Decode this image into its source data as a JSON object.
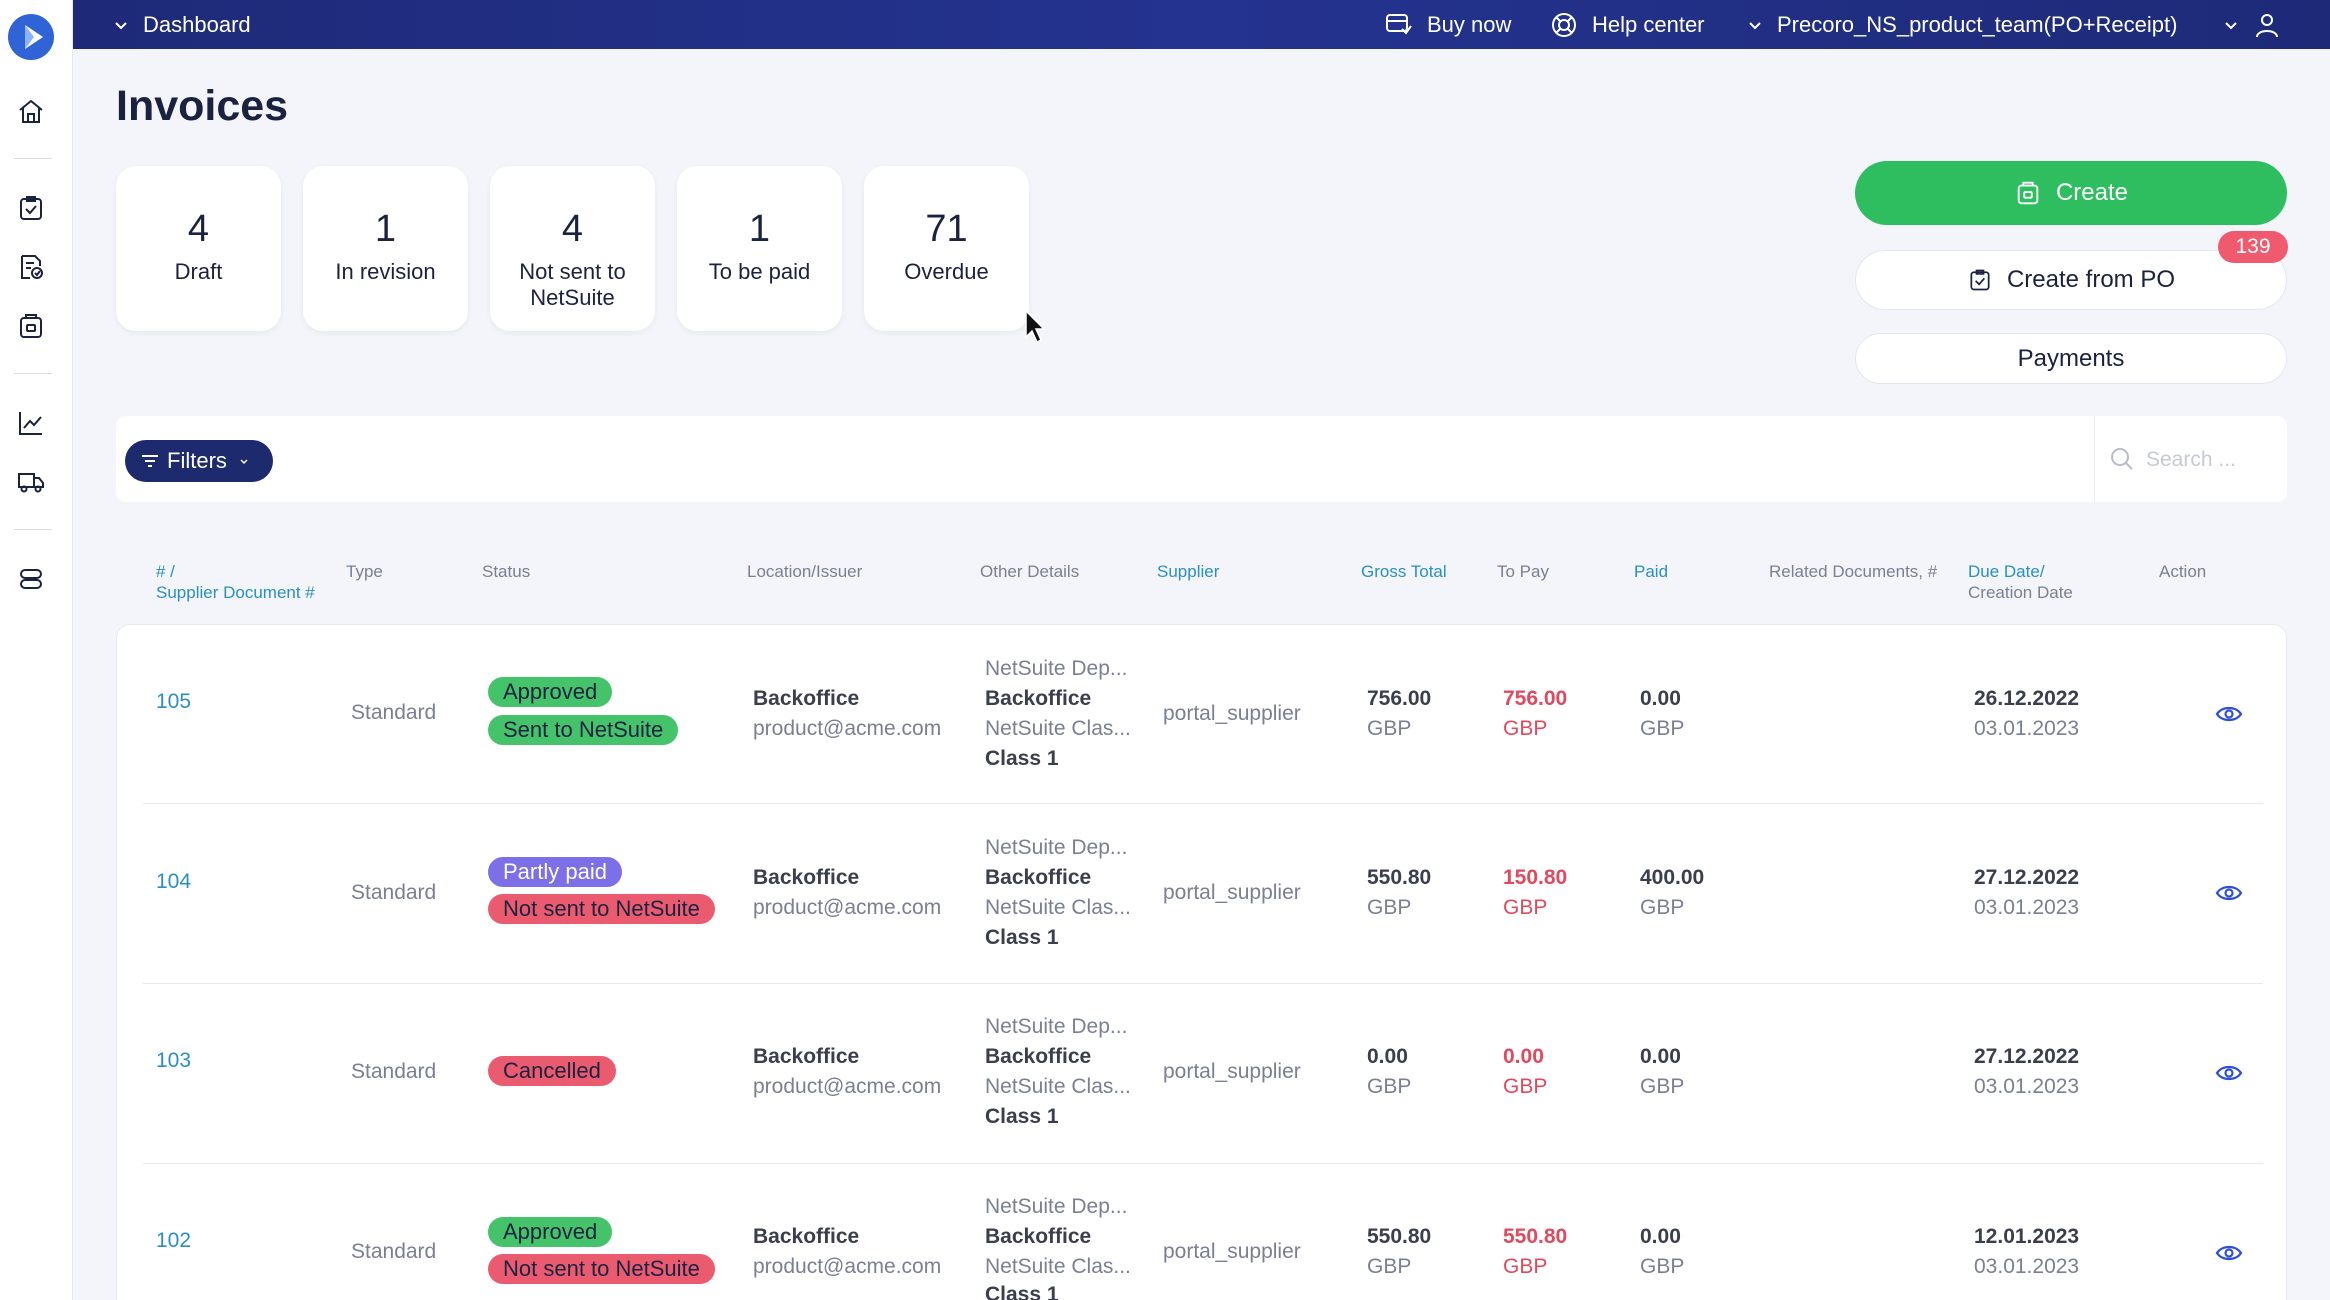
{
  "topbar": {
    "dashboard": "Dashboard",
    "buy_now": "Buy now",
    "help_center": "Help center",
    "company": "Precoro_NS_product_team(PO+Receipt)"
  },
  "page": {
    "title": "Invoices"
  },
  "stats": [
    {
      "value": "4",
      "label": "Draft"
    },
    {
      "value": "1",
      "label": "In revision"
    },
    {
      "value": "4",
      "label": "Not sent to NetSuite"
    },
    {
      "value": "1",
      "label": "To be paid"
    },
    {
      "value": "71",
      "label": "Overdue"
    }
  ],
  "actions": {
    "create": "Create",
    "create_from_po": "Create from PO",
    "create_from_po_badge": "139",
    "payments": "Payments"
  },
  "filters": {
    "label": "Filters",
    "search_placeholder": "Search ..."
  },
  "columns": {
    "number": "# /",
    "number_sub": "Supplier Document #",
    "type": "Type",
    "status": "Status",
    "location": "Location/Issuer",
    "other": "Other Details",
    "supplier": "Supplier",
    "gross": "Gross Total",
    "topay": "To Pay",
    "paid": "Paid",
    "related": "Related Documents, #",
    "due": "Due Date/",
    "due_sub": "Creation Date",
    "action": "Action"
  },
  "rows": [
    {
      "number": "105",
      "type": "Standard",
      "status": [
        "Approved",
        "Sent to NetSuite"
      ],
      "location": "Backoffice",
      "issuer": "product@acme.com",
      "other": [
        "NetSuite Dep...",
        "Backoffice",
        "NetSuite Clas...",
        "Class 1"
      ],
      "supplier": "portal_supplier",
      "gross": "756.00",
      "gross_cur": "GBP",
      "topay": "756.00",
      "topay_cur": "GBP",
      "paid": "0.00",
      "paid_cur": "GBP",
      "due": "26.12.2022",
      "created": "03.01.2023"
    },
    {
      "number": "104",
      "type": "Standard",
      "status": [
        "Partly paid",
        "Not sent to NetSuite"
      ],
      "location": "Backoffice",
      "issuer": "product@acme.com",
      "other": [
        "NetSuite Dep...",
        "Backoffice",
        "NetSuite Clas...",
        "Class 1"
      ],
      "supplier": "portal_supplier",
      "gross": "550.80",
      "gross_cur": "GBP",
      "topay": "150.80",
      "topay_cur": "GBP",
      "paid": "400.00",
      "paid_cur": "GBP",
      "due": "27.12.2022",
      "created": "03.01.2023"
    },
    {
      "number": "103",
      "type": "Standard",
      "status": [
        "Cancelled"
      ],
      "location": "Backoffice",
      "issuer": "product@acme.com",
      "other": [
        "NetSuite Dep...",
        "Backoffice",
        "NetSuite Clas...",
        "Class 1"
      ],
      "supplier": "portal_supplier",
      "gross": "0.00",
      "gross_cur": "GBP",
      "topay": "0.00",
      "topay_cur": "GBP",
      "paid": "0.00",
      "paid_cur": "GBP",
      "due": "27.12.2022",
      "created": "03.01.2023"
    },
    {
      "number": "102",
      "type": "Standard",
      "status": [
        "Approved",
        "Not sent to NetSuite"
      ],
      "location": "Backoffice",
      "issuer": "product@acme.com",
      "other": [
        "NetSuite Dep...",
        "Backoffice",
        "NetSuite Clas...",
        "Class 1"
      ],
      "supplier": "portal_supplier",
      "gross": "550.80",
      "gross_cur": "GBP",
      "topay": "550.80",
      "topay_cur": "GBP",
      "paid": "0.00",
      "paid_cur": "GBP",
      "due": "12.01.2023",
      "created": "03.01.2023"
    }
  ],
  "colors": {
    "brand": "#1e2a78",
    "accent_green": "#2fbe5f",
    "link_blue": "#2a8fc4",
    "danger": "#e04a5e"
  },
  "icons": [
    "logo-icon",
    "home-icon",
    "clipboard-check-icon",
    "document-check-icon",
    "invoice-icon",
    "chart-icon",
    "truck-icon",
    "database-icon",
    "chevron-down-icon",
    "cart-icon",
    "lifebuoy-icon",
    "user-icon",
    "filter-icon",
    "search-icon",
    "eye-icon"
  ]
}
